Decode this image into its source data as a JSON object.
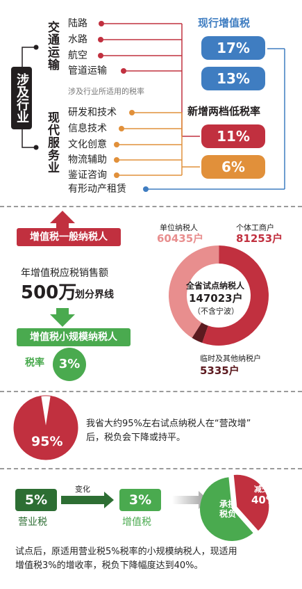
{
  "section1": {
    "scope_label": "涉及行业",
    "transport_label": "交通运输",
    "modern_label": "现代服务业",
    "transport_items": [
      "陆路",
      "水路",
      "航空",
      "管道运输"
    ],
    "modern_items": [
      "研发和技术",
      "信息技术",
      "文化创意",
      "物流辅助",
      "鉴证咨询"
    ],
    "leasing_item": "有形动产租赁",
    "rate_caption": "涉及行业所适用的税率",
    "current_title": "现行增值税",
    "new_title": "新增两档低税率",
    "rates": {
      "r17": "17%",
      "r13": "13%",
      "r11": "11%",
      "r6": "6%"
    },
    "colors": {
      "blue": "#3f7dc1",
      "red": "#c1303f",
      "orange": "#e1903a",
      "green": "#4aaa4f"
    }
  },
  "section2": {
    "general_taxpayer": "增值税一般纳税人",
    "threshold_line1": "年增值税应税销售额",
    "threshold_amount": "500万",
    "threshold_suffix": "划分界线",
    "small_taxpayer": "增值税小规模纳税人",
    "small_rate_label": "税率",
    "small_rate": "3%",
    "unit_label": "单位纳税人",
    "unit_value": "60435户",
    "individual_label": "个体工商户",
    "individual_value": "81253户",
    "total_label": "全省试点纳税人",
    "total_value": "147023户",
    "total_note": "（不含宁波）",
    "temp_label": "临时及其他纳税户",
    "temp_value": "5335户"
  },
  "chart_data": [
    {
      "type": "pie",
      "title": "",
      "categories": [
        "单位纳税人",
        "个体工商户",
        "临时及其他纳税户"
      ],
      "values": [
        60435,
        81253,
        5335
      ],
      "total": 147023,
      "colors": [
        "#e88e8e",
        "#c1303f",
        "#5c1a1f"
      ]
    },
    {
      "type": "pie",
      "title": "",
      "categories": [
        "",
        ""
      ],
      "values": [
        95,
        5
      ],
      "labels": [
        "95%",
        ""
      ],
      "colors": [
        "#c1303f",
        "#ffffff"
      ]
    },
    {
      "type": "pie",
      "title": "",
      "categories": [
        "承担税负",
        "减少"
      ],
      "values": [
        60,
        40
      ],
      "labels": [
        "承担税负",
        "减少 40%"
      ],
      "colors": [
        "#4aaa4f",
        "#c1303f"
      ]
    }
  ],
  "section3": {
    "statement": "我省大约95%左右试点纳税人在“营改增”后，税负会下降或持平。",
    "statement_line1": "我省大约95%左右试点纳税人在“营改增”",
    "statement_line2": "后，税负会下降或持平。"
  },
  "section4": {
    "old_rate": "5%",
    "old_label": "营业税",
    "change_label": "变化",
    "new_rate": "3%",
    "new_label": "增值税",
    "bear_label": "承担税负",
    "reduce_label": "减少",
    "reduce_value": "40%",
    "summary_line1": "试点后，原适用营业税5%税率的小规模纳税人，现适用",
    "summary_line2": "增值税3%的增收率，税负下降幅度达到40%。"
  }
}
